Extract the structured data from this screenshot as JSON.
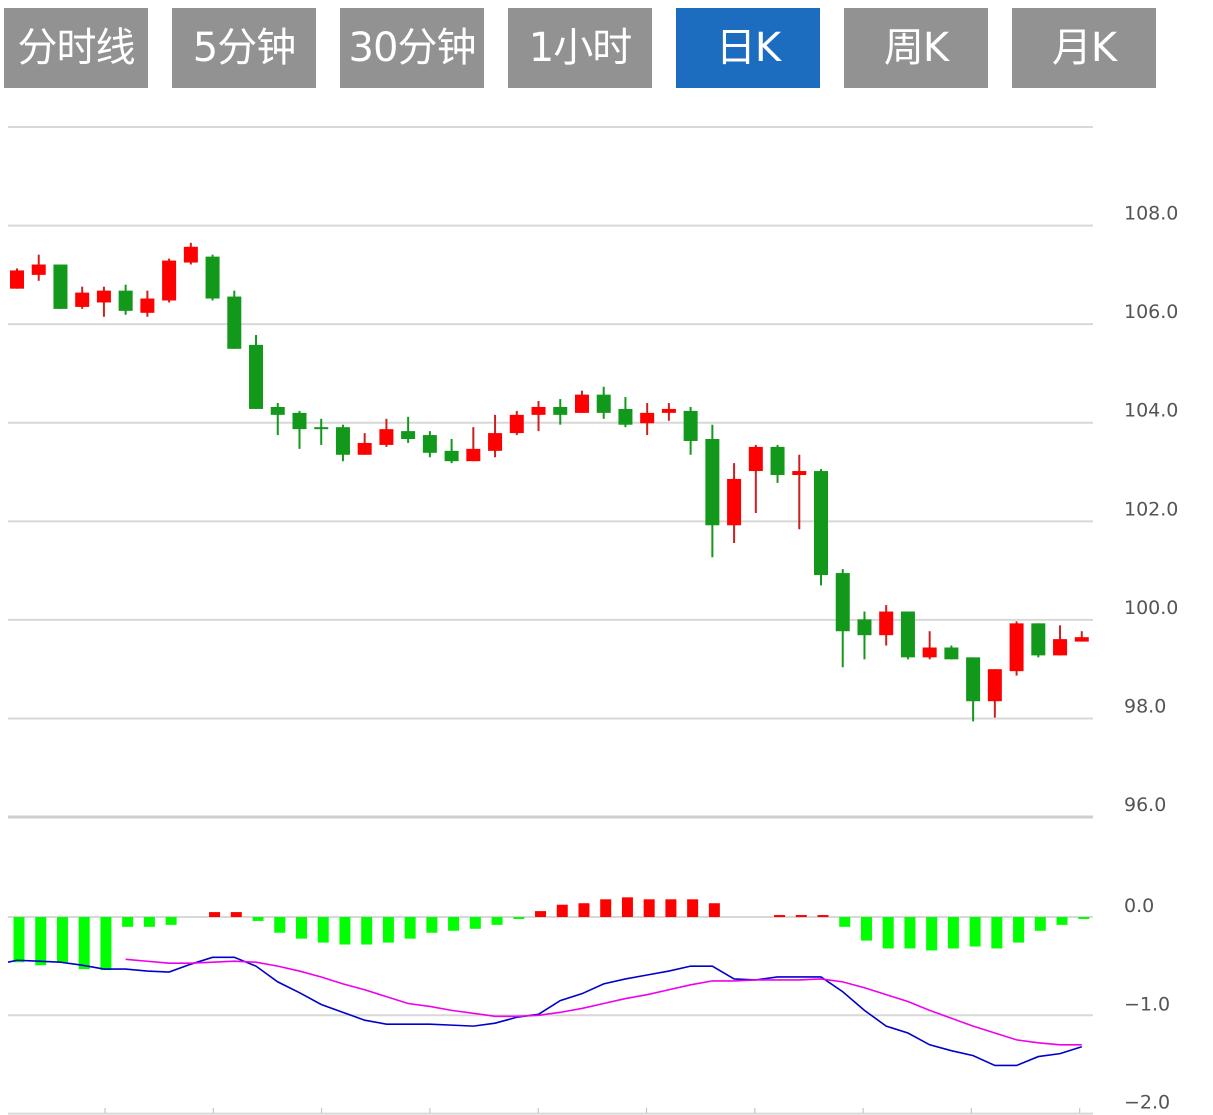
{
  "tabs": [
    {
      "label": "分时线",
      "active": false
    },
    {
      "label": "5分钟",
      "active": false
    },
    {
      "label": "30分钟",
      "active": false
    },
    {
      "label": "1小时",
      "active": false
    },
    {
      "label": "日K",
      "active": true
    },
    {
      "label": "周K",
      "active": false
    },
    {
      "label": "月K",
      "active": false
    }
  ],
  "colors": {
    "active_tab": "#1c6cbf",
    "inactive_tab": "#929292",
    "up": "#ff0000",
    "down": "#12981a",
    "hist_up": "#ff0000",
    "hist_down": "#00ff00",
    "dif_line": "#0000cc",
    "dea_line": "#ee00ee"
  },
  "chart_data": [
    {
      "type": "candlestick",
      "ylim": [
        96,
        110
      ],
      "y_ticks": [
        "108.0",
        "106.0",
        "104.0",
        "102.0",
        "100.0",
        "98.0",
        "96.0"
      ],
      "y_tick_values": [
        108,
        106,
        104,
        102,
        100,
        98,
        96
      ],
      "grid": true,
      "candles": [
        {
          "o": 106.72,
          "h": 107.13,
          "l": 106.72,
          "c": 107.09
        },
        {
          "o": 107.0,
          "h": 107.41,
          "l": 106.88,
          "c": 107.21
        },
        {
          "o": 107.21,
          "h": 107.21,
          "l": 106.31,
          "c": 106.31
        },
        {
          "o": 106.35,
          "h": 106.76,
          "l": 106.31,
          "c": 106.64
        },
        {
          "o": 106.44,
          "h": 106.76,
          "l": 106.15,
          "c": 106.68
        },
        {
          "o": 106.68,
          "h": 106.8,
          "l": 106.19,
          "c": 106.27
        },
        {
          "o": 106.23,
          "h": 106.68,
          "l": 106.15,
          "c": 106.52
        },
        {
          "o": 106.48,
          "h": 107.33,
          "l": 106.44,
          "c": 107.29
        },
        {
          "o": 107.25,
          "h": 107.65,
          "l": 107.21,
          "c": 107.57
        },
        {
          "o": 107.37,
          "h": 107.41,
          "l": 106.48,
          "c": 106.52
        },
        {
          "o": 106.56,
          "h": 106.68,
          "l": 105.5,
          "c": 105.5
        },
        {
          "o": 105.58,
          "h": 105.78,
          "l": 104.28,
          "c": 104.28
        },
        {
          "o": 104.32,
          "h": 104.4,
          "l": 103.75,
          "c": 104.16
        },
        {
          "o": 104.2,
          "h": 104.24,
          "l": 103.47,
          "c": 103.87
        },
        {
          "o": 103.91,
          "h": 104.08,
          "l": 103.55,
          "c": 103.89
        },
        {
          "o": 103.91,
          "h": 103.96,
          "l": 103.22,
          "c": 103.35
        },
        {
          "o": 103.35,
          "h": 103.79,
          "l": 103.35,
          "c": 103.59
        },
        {
          "o": 103.55,
          "h": 104.08,
          "l": 103.51,
          "c": 103.87
        },
        {
          "o": 103.83,
          "h": 104.12,
          "l": 103.59,
          "c": 103.67
        },
        {
          "o": 103.75,
          "h": 103.83,
          "l": 103.3,
          "c": 103.39
        },
        {
          "o": 103.43,
          "h": 103.67,
          "l": 103.18,
          "c": 103.22
        },
        {
          "o": 103.22,
          "h": 103.91,
          "l": 103.22,
          "c": 103.47
        },
        {
          "o": 103.43,
          "h": 104.16,
          "l": 103.3,
          "c": 103.79
        },
        {
          "o": 103.79,
          "h": 104.24,
          "l": 103.75,
          "c": 104.16
        },
        {
          "o": 104.16,
          "h": 104.44,
          "l": 103.83,
          "c": 104.32
        },
        {
          "o": 104.32,
          "h": 104.48,
          "l": 103.96,
          "c": 104.16
        },
        {
          "o": 104.2,
          "h": 104.65,
          "l": 104.2,
          "c": 104.57
        },
        {
          "o": 104.57,
          "h": 104.73,
          "l": 104.08,
          "c": 104.2
        },
        {
          "o": 104.28,
          "h": 104.52,
          "l": 103.91,
          "c": 103.96
        },
        {
          "o": 103.99,
          "h": 104.4,
          "l": 103.75,
          "c": 104.2
        },
        {
          "o": 104.2,
          "h": 104.4,
          "l": 104.04,
          "c": 104.28
        },
        {
          "o": 104.24,
          "h": 104.32,
          "l": 103.35,
          "c": 103.63
        },
        {
          "o": 103.67,
          "h": 103.96,
          "l": 101.27,
          "c": 101.92
        },
        {
          "o": 101.92,
          "h": 103.18,
          "l": 101.56,
          "c": 102.86
        },
        {
          "o": 103.02,
          "h": 103.55,
          "l": 102.17,
          "c": 103.51
        },
        {
          "o": 103.51,
          "h": 103.55,
          "l": 102.78,
          "c": 102.94
        },
        {
          "o": 102.94,
          "h": 103.35,
          "l": 101.84,
          "c": 103.02
        },
        {
          "o": 103.02,
          "h": 103.06,
          "l": 100.7,
          "c": 100.91
        },
        {
          "o": 100.95,
          "h": 101.03,
          "l": 99.04,
          "c": 99.77
        },
        {
          "o": 100.01,
          "h": 100.17,
          "l": 99.2,
          "c": 99.69
        },
        {
          "o": 99.69,
          "h": 100.3,
          "l": 99.48,
          "c": 100.17
        },
        {
          "o": 100.17,
          "h": 100.17,
          "l": 99.2,
          "c": 99.24
        },
        {
          "o": 99.24,
          "h": 99.77,
          "l": 99.2,
          "c": 99.44
        },
        {
          "o": 99.44,
          "h": 99.48,
          "l": 99.2,
          "c": 99.2
        },
        {
          "o": 99.24,
          "h": 99.24,
          "l": 97.94,
          "c": 98.35
        },
        {
          "o": 98.35,
          "h": 99.0,
          "l": 98.02,
          "c": 99.0
        },
        {
          "o": 98.96,
          "h": 99.97,
          "l": 98.87,
          "c": 99.93
        },
        {
          "o": 99.93,
          "h": 99.93,
          "l": 99.24,
          "c": 99.28
        },
        {
          "o": 99.28,
          "h": 99.89,
          "l": 99.28,
          "c": 99.61
        },
        {
          "o": 99.56,
          "h": 99.77,
          "l": 99.56,
          "c": 99.65
        }
      ]
    },
    {
      "type": "macd",
      "ylim": [
        -2,
        0.2
      ],
      "y_ticks": [
        "0.0",
        "−1.0",
        "−2.0"
      ],
      "y_tick_values": [
        0,
        -1,
        -2
      ],
      "grid": true,
      "histogram": [
        -0.46,
        -0.49,
        -0.46,
        -0.53,
        -0.54,
        -0.1,
        -0.1,
        -0.08,
        0,
        0.05,
        0.05,
        -0.04,
        -0.16,
        -0.22,
        -0.26,
        -0.28,
        -0.28,
        -0.26,
        -0.22,
        -0.16,
        -0.14,
        -0.12,
        -0.08,
        -0.02,
        0.06,
        0.125,
        0.14,
        0.18,
        0.2,
        0.18,
        0.18,
        0.18,
        0.14,
        0,
        0,
        0.02,
        0.02,
        0.02,
        -0.1,
        -0.24,
        -0.32,
        -0.32,
        -0.34,
        -0.32,
        -0.3,
        -0.32,
        -0.26,
        -0.14,
        -0.08,
        -0.02
      ],
      "dif": [
        -0.44,
        -0.45,
        -0.46,
        -0.49,
        -0.53,
        -0.53,
        -0.55,
        -0.56,
        -0.48,
        -0.41,
        -0.41,
        -0.5,
        -0.66,
        -0.77,
        -0.89,
        -0.97,
        -1.05,
        -1.09,
        -1.09,
        -1.09,
        -1.1,
        -1.11,
        -1.08,
        -1.02,
        -0.99,
        -0.85,
        -0.78,
        -0.68,
        -0.63,
        -0.59,
        -0.55,
        -0.5,
        -0.5,
        -0.63,
        -0.64,
        -0.61,
        -0.61,
        -0.61,
        -0.76,
        -0.95,
        -1.11,
        -1.18,
        -1.3,
        -1.36,
        -1.41,
        -1.51,
        -1.51,
        -1.42,
        -1.39,
        -1.32
      ],
      "dea": [
        null,
        null,
        null,
        null,
        null,
        -0.43,
        -0.45,
        -0.47,
        -0.47,
        -0.46,
        -0.45,
        -0.46,
        -0.5,
        -0.55,
        -0.61,
        -0.68,
        -0.74,
        -0.81,
        -0.88,
        -0.91,
        -0.95,
        -0.98,
        -1.01,
        -1.01,
        -1.0,
        -0.97,
        -0.93,
        -0.88,
        -0.83,
        -0.79,
        -0.74,
        -0.69,
        -0.65,
        -0.65,
        -0.64,
        -0.64,
        -0.64,
        -0.63,
        -0.66,
        -0.72,
        -0.79,
        -0.86,
        -0.95,
        -1.03,
        -1.11,
        -1.18,
        -1.25,
        -1.28,
        -1.3,
        -1.3
      ]
    }
  ]
}
